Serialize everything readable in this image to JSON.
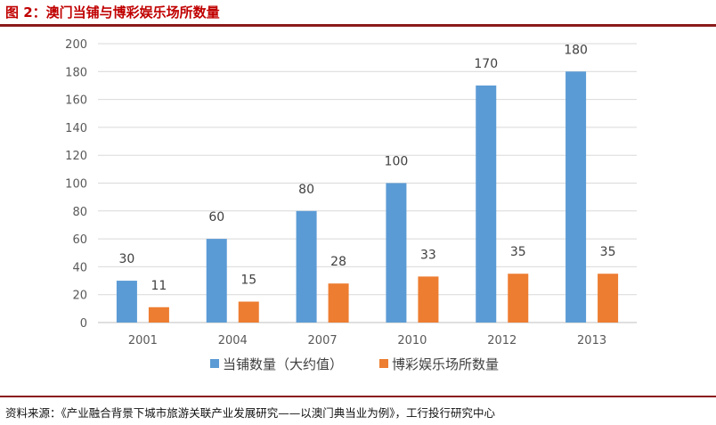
{
  "figure": {
    "title": "图 2：澳门当铺与博彩娱乐场所数量",
    "source": "资料来源：《产业融合背景下城市旅游关联产业发展研究——以澳门典当业为例》，工行投行研究中心"
  },
  "colors": {
    "series1": "#5b9bd5",
    "series2": "#ed7d31",
    "grid": "#d9d9d9",
    "rule": "#8b1a1a"
  },
  "chart_data": {
    "type": "bar",
    "categories": [
      "2001",
      "2004",
      "2007",
      "2010",
      "2012",
      "2013"
    ],
    "series": [
      {
        "name": "当铺数量（大约值）",
        "values": [
          30,
          60,
          80,
          100,
          170,
          180
        ]
      },
      {
        "name": "博彩娱乐场所数量",
        "values": [
          11,
          15,
          28,
          33,
          35,
          35
        ]
      }
    ],
    "ylim": [
      0,
      200
    ],
    "yticks": [
      0,
      20,
      40,
      60,
      80,
      100,
      120,
      140,
      160,
      180,
      200
    ],
    "grid": true,
    "legend_position": "bottom",
    "data_labels": true
  }
}
